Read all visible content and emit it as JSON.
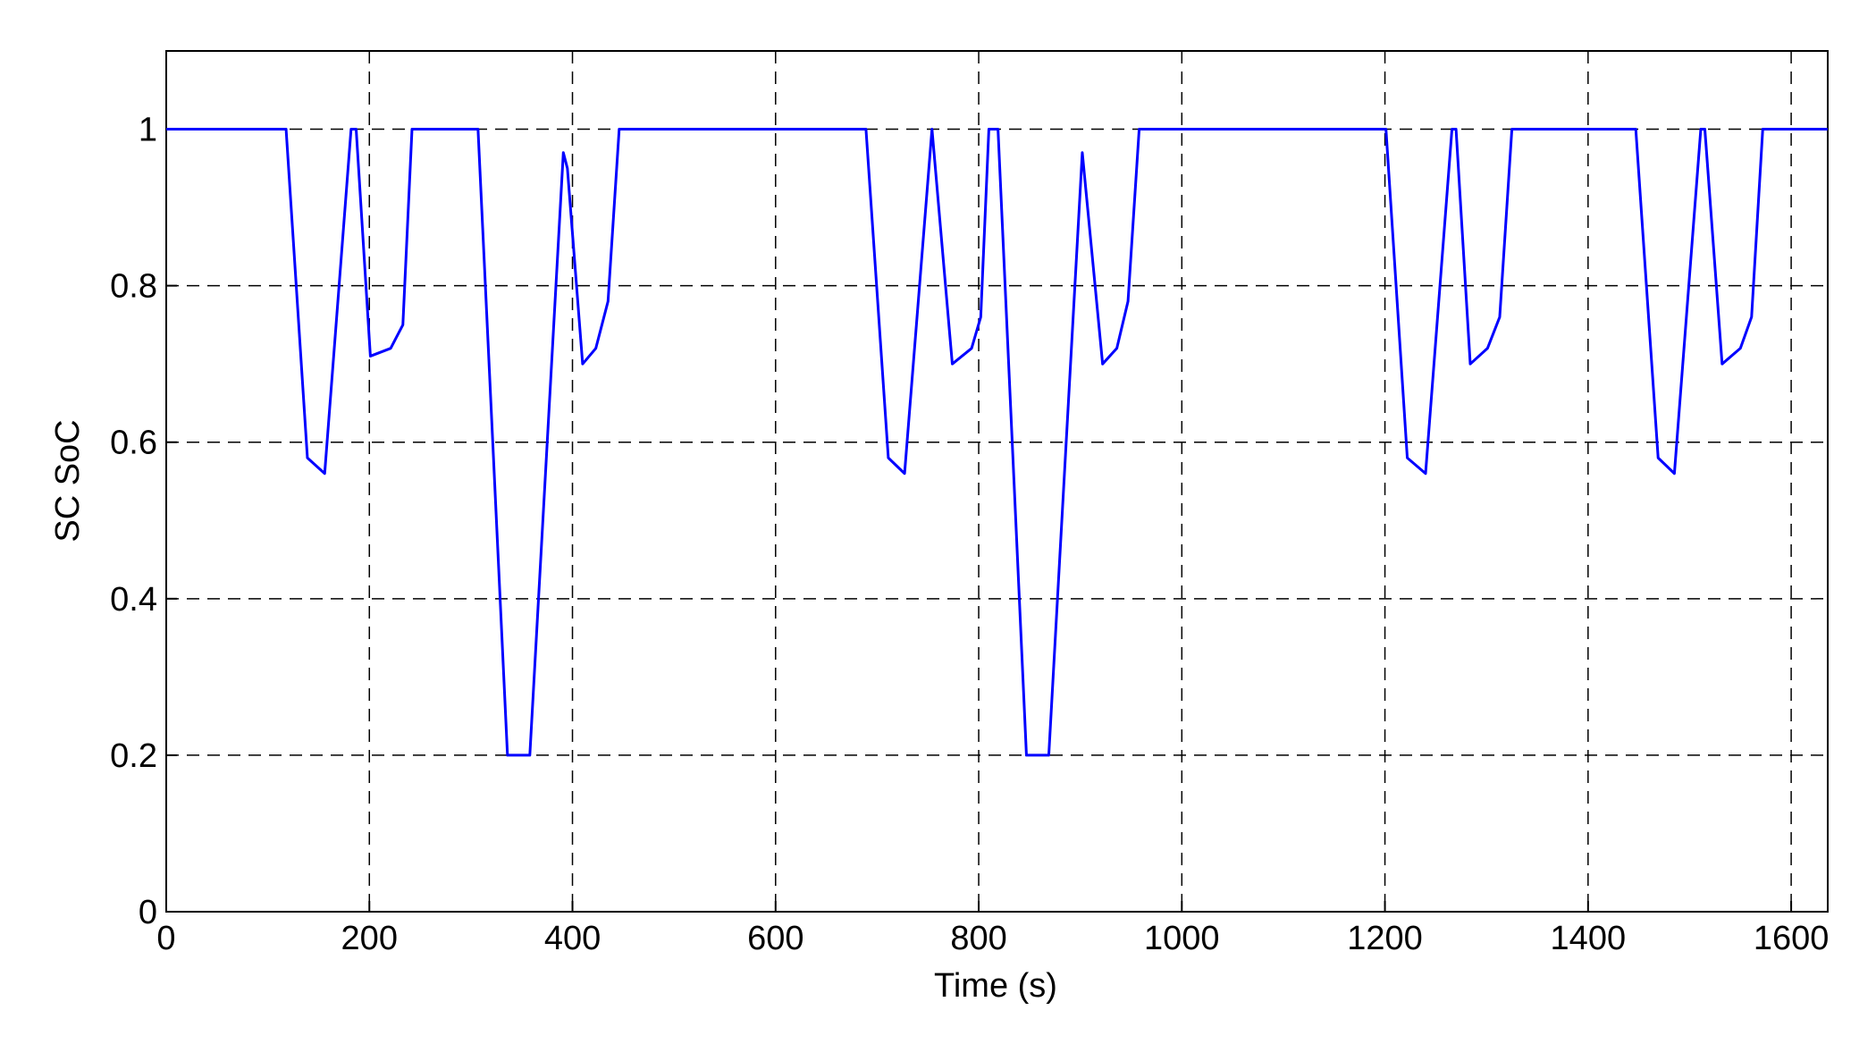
{
  "chart_data": {
    "type": "line",
    "xlabel": "Time (s)",
    "ylabel": "SC SoC",
    "xlim": [
      0,
      1636
    ],
    "ylim": [
      0,
      1.1
    ],
    "xticks": [
      0,
      200,
      400,
      600,
      800,
      1000,
      1200,
      1400,
      1600
    ],
    "yticks": [
      0,
      0.2,
      0.4,
      0.6,
      0.8,
      1
    ],
    "grid": true,
    "series": [
      {
        "color": "#0000ff",
        "x": [
          0,
          118,
          139,
          156,
          182,
          187,
          201,
          221,
          233,
          242,
          307,
          336,
          358,
          391,
          395,
          410,
          423,
          435,
          446,
          689,
          711,
          727,
          754,
          774,
          793,
          802,
          810,
          819,
          847,
          869,
          902,
          922,
          936,
          947,
          958,
          1201,
          1222,
          1240,
          1266,
          1270,
          1284,
          1301,
          1313,
          1325,
          1447,
          1469,
          1485,
          1511,
          1515,
          1532,
          1550,
          1561,
          1572,
          1636
        ],
        "values": [
          1,
          1,
          0.58,
          0.56,
          1,
          1,
          0.71,
          0.72,
          0.75,
          1,
          1,
          0.2,
          0.2,
          0.97,
          0.95,
          0.7,
          0.72,
          0.78,
          1,
          1,
          0.58,
          0.56,
          1,
          0.7,
          0.72,
          0.76,
          1,
          1,
          0.2,
          0.2,
          0.97,
          0.7,
          0.72,
          0.78,
          1,
          1,
          0.58,
          0.56,
          1,
          1,
          0.7,
          0.72,
          0.76,
          1,
          1,
          0.58,
          0.56,
          1,
          1,
          0.7,
          0.72,
          0.76,
          1,
          1
        ]
      }
    ]
  }
}
